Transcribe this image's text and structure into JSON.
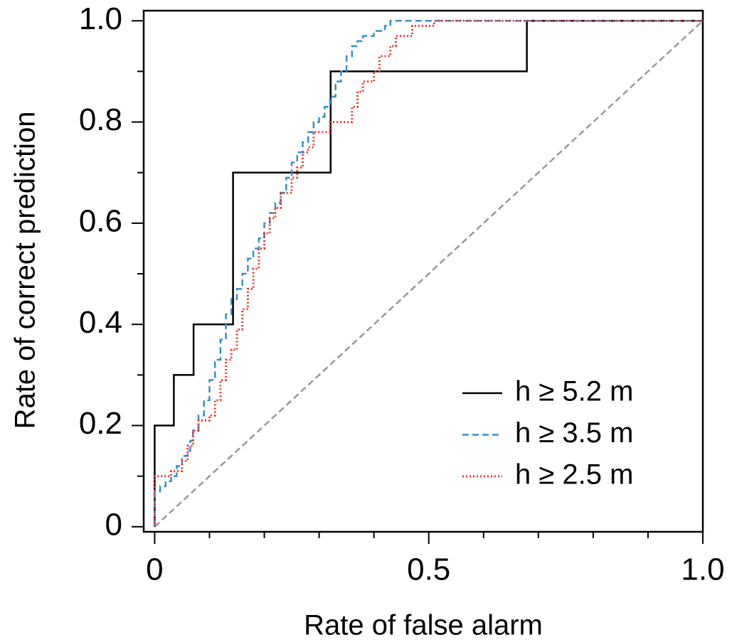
{
  "chart_data": {
    "type": "line",
    "drawstyle": "steps-post",
    "xlabel": "Rate of false alarm",
    "ylabel": "Rate of correct prediction",
    "xlim": [
      -0.02,
      1.0
    ],
    "ylim": [
      -0.01,
      1.02
    ],
    "xticks": [
      0,
      0.5,
      {
        "value": 1,
        "label": "1.0"
      }
    ],
    "yticks": [
      0,
      0.2,
      0.4,
      0.6,
      0.8,
      {
        "value": 1,
        "label": "1.0"
      }
    ],
    "x_minor_ticks": [
      0.1,
      0.2,
      0.3,
      0.4,
      0.6,
      0.7,
      0.8,
      0.9
    ],
    "y_minor_ticks": [
      0.1,
      0.3,
      0.5,
      0.7,
      0.9
    ],
    "legend": "lower right",
    "reference_line": {
      "color": "#999999",
      "linestyle": "dashed",
      "x": [
        0,
        1
      ],
      "values": [
        0,
        1
      ]
    },
    "series": [
      {
        "name": "h ≥ 5.2 m",
        "color": "#000000",
        "linestyle": "solid",
        "x": [
          0,
          0,
          0.035,
          0.071,
          0.143,
          0.321,
          0.679,
          1
        ],
        "values": [
          0,
          0.2,
          0.3,
          0.4,
          0.7,
          0.9,
          1.0,
          1.0
        ]
      },
      {
        "name": "h ≥ 3.5 m",
        "color": "#3a8fc4",
        "linestyle": "dashed",
        "x": [
          0,
          0,
          0.01,
          0.02,
          0.03,
          0.04,
          0.05,
          0.06,
          0.065,
          0.07,
          0.08,
          0.09,
          0.1,
          0.11,
          0.12,
          0.13,
          0.14,
          0.15,
          0.16,
          0.17,
          0.18,
          0.19,
          0.2,
          0.21,
          0.22,
          0.23,
          0.24,
          0.25,
          0.26,
          0.27,
          0.28,
          0.29,
          0.3,
          0.31,
          0.32,
          0.33,
          0.34,
          0.35,
          0.36,
          0.37,
          0.38,
          0.4,
          0.42,
          0.43,
          1
        ],
        "values": [
          0,
          0.07,
          0.08,
          0.09,
          0.1,
          0.12,
          0.14,
          0.15,
          0.17,
          0.19,
          0.22,
          0.25,
          0.29,
          0.33,
          0.37,
          0.42,
          0.45,
          0.47,
          0.5,
          0.53,
          0.55,
          0.57,
          0.6,
          0.62,
          0.64,
          0.66,
          0.69,
          0.72,
          0.74,
          0.76,
          0.78,
          0.8,
          0.81,
          0.83,
          0.85,
          0.88,
          0.9,
          0.93,
          0.95,
          0.96,
          0.97,
          0.98,
          0.99,
          1.0,
          1.0
        ]
      },
      {
        "name": "h ≥ 2.5 m",
        "color": "#e8382a",
        "linestyle": "dotted",
        "x": [
          0,
          0,
          0.03,
          0.05,
          0.06,
          0.07,
          0.08,
          0.1,
          0.11,
          0.12,
          0.13,
          0.14,
          0.15,
          0.16,
          0.17,
          0.18,
          0.19,
          0.2,
          0.21,
          0.22,
          0.23,
          0.25,
          0.26,
          0.27,
          0.28,
          0.29,
          0.32,
          0.36,
          0.37,
          0.38,
          0.4,
          0.41,
          0.43,
          0.44,
          0.47,
          0.51,
          1
        ],
        "values": [
          0,
          0.1,
          0.11,
          0.13,
          0.16,
          0.19,
          0.21,
          0.22,
          0.25,
          0.29,
          0.33,
          0.35,
          0.39,
          0.43,
          0.47,
          0.51,
          0.55,
          0.58,
          0.61,
          0.63,
          0.66,
          0.69,
          0.71,
          0.74,
          0.75,
          0.78,
          0.8,
          0.83,
          0.86,
          0.88,
          0.9,
          0.93,
          0.95,
          0.97,
          0.99,
          1.0,
          1.0
        ]
      }
    ]
  }
}
